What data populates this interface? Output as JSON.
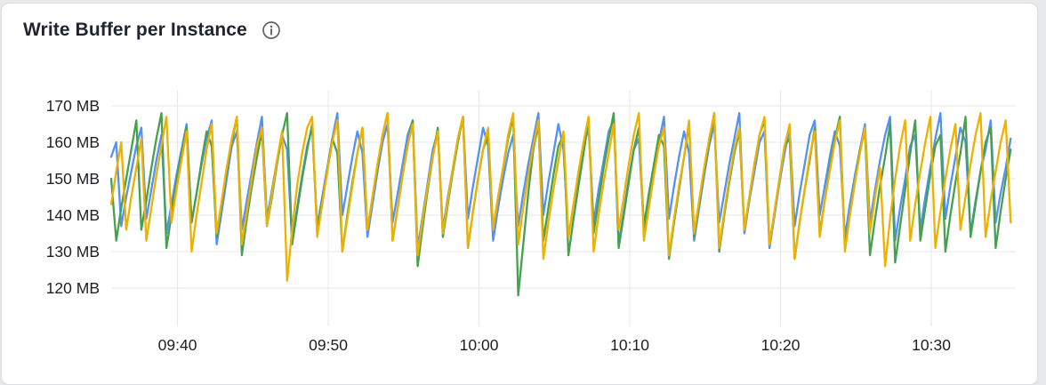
{
  "page": {
    "background_color": "#e8e9eb"
  },
  "card": {
    "title": "Write Buffer per Instance",
    "background_color": "#ffffff",
    "border_color": "#dcdee1",
    "title_color": "#1f2430",
    "info_icon_color": "#5f6368"
  },
  "chart_data": {
    "type": "line",
    "title": "Write Buffer per Instance",
    "xlabel": "",
    "ylabel": "",
    "unit": "MB",
    "grid": true,
    "legend": "none",
    "axis_text_color": "#202124",
    "grid_color": "#e6e7e9",
    "x_range_minutes": [
      0,
      60
    ],
    "ylim": [
      110,
      173
    ],
    "sample_interval_seconds": 20,
    "y_ticks": [
      {
        "value": 170,
        "label": "170 MB"
      },
      {
        "value": 160,
        "label": "160 MB"
      },
      {
        "value": 150,
        "label": "150 MB"
      },
      {
        "value": 140,
        "label": "140 MB"
      },
      {
        "value": 130,
        "label": "130 MB"
      },
      {
        "value": 120,
        "label": "120 MB"
      }
    ],
    "x_ticks": [
      {
        "t": 4.4,
        "label": "09:40"
      },
      {
        "t": 14.4,
        "label": "09:50"
      },
      {
        "t": 24.4,
        "label": "10:00"
      },
      {
        "t": 34.4,
        "label": "10:10"
      },
      {
        "t": 44.4,
        "label": "10:20"
      },
      {
        "t": 54.4,
        "label": "10:30"
      }
    ],
    "series": [
      {
        "name": "series-blue",
        "color": "#5690F2",
        "values": [
          156,
          160,
          137,
          145,
          152,
          159,
          164,
          139,
          147,
          155,
          162,
          135,
          143,
          151,
          158,
          165,
          138,
          146,
          154,
          161,
          166,
          132,
          141,
          150,
          159,
          163,
          136,
          144,
          152,
          160,
          167,
          139,
          147,
          155,
          162,
          158,
          133,
          142,
          151,
          159,
          164,
          137,
          145,
          153,
          161,
          168,
          140,
          148,
          156,
          163,
          157,
          134,
          143,
          152,
          160,
          165,
          138,
          146,
          154,
          162,
          166,
          131,
          140,
          149,
          158,
          163,
          136,
          145,
          153,
          161,
          167,
          139,
          148,
          156,
          164,
          159,
          133,
          142,
          150,
          157,
          162,
          137,
          146,
          154,
          161,
          168,
          140,
          149,
          157,
          165,
          158,
          134,
          143,
          151,
          159,
          164,
          138,
          147,
          155,
          163,
          166,
          132,
          141,
          150,
          158,
          161,
          136,
          145,
          153,
          160,
          167,
          139,
          148,
          156,
          163,
          157,
          133,
          142,
          151,
          159,
          165,
          138,
          146,
          154,
          161,
          168,
          135,
          144,
          152,
          160,
          163,
          131,
          140,
          149,
          157,
          164,
          137,
          146,
          154,
          162,
          166,
          140,
          148,
          156,
          163,
          159,
          134,
          143,
          151,
          158,
          165,
          138,
          147,
          155,
          162,
          167,
          133,
          142,
          150,
          159,
          162,
          136,
          145,
          153,
          161,
          168,
          139,
          148,
          156,
          164,
          160,
          135,
          144,
          152,
          158,
          166,
          138,
          146,
          153,
          161
        ]
      },
      {
        "name": "series-green",
        "color": "#47A04F",
        "values": [
          150,
          133,
          142,
          150,
          158,
          166,
          136,
          144,
          153,
          161,
          168,
          131,
          140,
          149,
          157,
          164,
          138,
          146,
          155,
          163,
          159,
          134,
          143,
          152,
          160,
          167,
          129,
          139,
          148,
          156,
          163,
          137,
          145,
          154,
          162,
          168,
          132,
          141,
          150,
          158,
          165,
          135,
          144,
          152,
          161,
          157,
          130,
          140,
          149,
          157,
          164,
          136,
          145,
          153,
          162,
          168,
          133,
          142,
          151,
          159,
          166,
          126,
          137,
          147,
          156,
          164,
          134,
          143,
          152,
          160,
          167,
          131,
          141,
          150,
          158,
          162,
          136,
          145,
          153,
          161,
          167,
          118,
          132,
          146,
          158,
          165,
          133,
          142,
          151,
          159,
          162,
          129,
          139,
          148,
          157,
          166,
          135,
          144,
          153,
          161,
          168,
          131,
          140,
          149,
          158,
          164,
          137,
          146,
          154,
          162,
          159,
          128,
          138,
          147,
          156,
          165,
          134,
          143,
          152,
          160,
          168,
          130,
          140,
          149,
          157,
          163,
          136,
          145,
          154,
          162,
          166,
          132,
          141,
          150,
          159,
          161,
          128,
          138,
          147,
          155,
          164,
          135,
          144,
          153,
          161,
          167,
          131,
          140,
          149,
          158,
          163,
          129,
          139,
          148,
          156,
          165,
          127,
          137,
          147,
          157,
          166,
          133,
          142,
          151,
          159,
          162,
          130,
          140,
          149,
          157,
          167,
          134,
          143,
          152,
          160,
          164,
          131,
          141,
          150,
          158
        ]
      },
      {
        "name": "series-yellow",
        "color": "#EFB100",
        "values": [
          143,
          152,
          160,
          136,
          145,
          153,
          161,
          133,
          142,
          151,
          159,
          167,
          138,
          147,
          155,
          163,
          130,
          140,
          149,
          158,
          165,
          135,
          144,
          153,
          161,
          167,
          132,
          141,
          150,
          159,
          164,
          137,
          146,
          155,
          163,
          122,
          136,
          148,
          157,
          164,
          167,
          134,
          143,
          152,
          160,
          166,
          130,
          139,
          148,
          157,
          164,
          136,
          145,
          154,
          162,
          168,
          133,
          142,
          151,
          159,
          165,
          129,
          139,
          148,
          156,
          163,
          135,
          144,
          153,
          161,
          167,
          131,
          141,
          150,
          158,
          164,
          136,
          145,
          153,
          162,
          168,
          132,
          142,
          151,
          159,
          166,
          128,
          138,
          147,
          155,
          163,
          134,
          143,
          152,
          160,
          167,
          130,
          140,
          149,
          157,
          165,
          136,
          145,
          154,
          162,
          168,
          133,
          142,
          151,
          159,
          164,
          129,
          139,
          148,
          156,
          166,
          135,
          144,
          153,
          161,
          168,
          131,
          141,
          150,
          158,
          164,
          136,
          145,
          154,
          162,
          167,
          132,
          141,
          150,
          159,
          165,
          128,
          138,
          147,
          156,
          163,
          134,
          144,
          152,
          160,
          166,
          130,
          140,
          149,
          157,
          164,
          135,
          145,
          153,
          126,
          139,
          150,
          159,
          166,
          133,
          143,
          152,
          160,
          167,
          131,
          141,
          150,
          158,
          165,
          136,
          145,
          154,
          162,
          168,
          134,
          144,
          152,
          160,
          166,
          138
        ]
      }
    ]
  }
}
